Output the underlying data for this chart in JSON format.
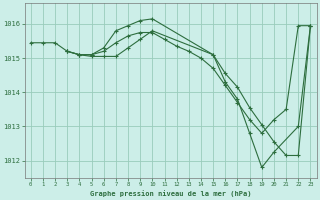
{
  "bg_color": "#cceee8",
  "grid_color": "#99ccbb",
  "line_color": "#2d6e3e",
  "xlabel": "Graphe pression niveau de la mer (hPa)",
  "xlim": [
    -0.5,
    23.5
  ],
  "ylim": [
    1011.5,
    1016.6
  ],
  "yticks": [
    1012,
    1013,
    1014,
    1015,
    1016
  ],
  "xticks": [
    0,
    1,
    2,
    3,
    4,
    5,
    6,
    7,
    8,
    9,
    10,
    11,
    12,
    13,
    14,
    15,
    16,
    17,
    18,
    19,
    20,
    21,
    22,
    23
  ],
  "series1_x": [
    0,
    1,
    2,
    3,
    4,
    5,
    6,
    7,
    8,
    9,
    10,
    11,
    12,
    13,
    14,
    15,
    16,
    17,
    18,
    19,
    20,
    21,
    22,
    23
  ],
  "series1_y": [
    1015.45,
    1015.45,
    1015.45,
    1015.2,
    1015.1,
    1015.1,
    1015.2,
    1015.45,
    1015.65,
    1015.75,
    1015.75,
    1015.55,
    1015.35,
    1015.2,
    1015.0,
    1014.7,
    1014.2,
    1013.7,
    1013.2,
    1012.8,
    1013.2,
    1013.5,
    1015.95,
    1015.95
  ],
  "series2_x": [
    3,
    4,
    5,
    6,
    7,
    8,
    9,
    10,
    15,
    16,
    17,
    18,
    19,
    20,
    22,
    23
  ],
  "series2_y": [
    1015.2,
    1015.1,
    1015.1,
    1015.3,
    1015.8,
    1015.95,
    1016.1,
    1016.15,
    1015.1,
    1014.3,
    1013.8,
    1012.8,
    1011.8,
    1012.25,
    1013.0,
    1015.95
  ],
  "series3_x": [
    3,
    4,
    5,
    6,
    7,
    8,
    9,
    10,
    15,
    16,
    17,
    18,
    19,
    20,
    21,
    22,
    23
  ],
  "series3_y": [
    1015.2,
    1015.1,
    1015.05,
    1015.05,
    1015.05,
    1015.3,
    1015.55,
    1015.8,
    1015.1,
    1014.55,
    1014.15,
    1013.55,
    1013.05,
    1012.55,
    1012.15,
    1012.15,
    1015.95
  ]
}
